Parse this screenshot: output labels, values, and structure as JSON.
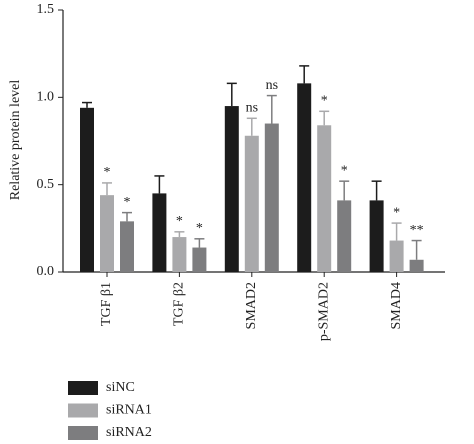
{
  "chart_data": {
    "type": "bar",
    "y_label": "Relative protein level",
    "categories": [
      "TGF β1",
      "TGF β2",
      "SMAD2",
      "p-SMAD2",
      "SMAD4"
    ],
    "ylim": [
      0,
      1.5
    ],
    "yticks": [
      {
        "value": 0,
        "label": "0.0"
      },
      0.5,
      {
        "value": 1,
        "label": "1.0"
      },
      1.5
    ],
    "legend": "bottom-left",
    "series": [
      {
        "name": "siNC",
        "color": "#1c1c1c",
        "values": [
          0.94,
          0.45,
          0.95,
          1.08,
          0.41
        ],
        "errors": [
          0.03,
          0.1,
          0.13,
          0.1,
          0.11
        ]
      },
      {
        "name": "siRNA1",
        "color": "#a9a9ab",
        "values": [
          0.44,
          0.2,
          0.78,
          0.84,
          0.18
        ],
        "errors": [
          0.07,
          0.03,
          0.1,
          0.08,
          0.1
        ],
        "annotations": [
          "*",
          "*",
          "ns",
          "*",
          "*"
        ]
      },
      {
        "name": "siRNA2",
        "color": "#7d7d7f",
        "values": [
          0.29,
          0.14,
          0.85,
          0.41,
          0.07
        ],
        "errors": [
          0.05,
          0.05,
          0.16,
          0.11,
          0.11
        ],
        "annotations": [
          "*",
          "*",
          "ns",
          "*",
          "**"
        ]
      }
    ]
  }
}
